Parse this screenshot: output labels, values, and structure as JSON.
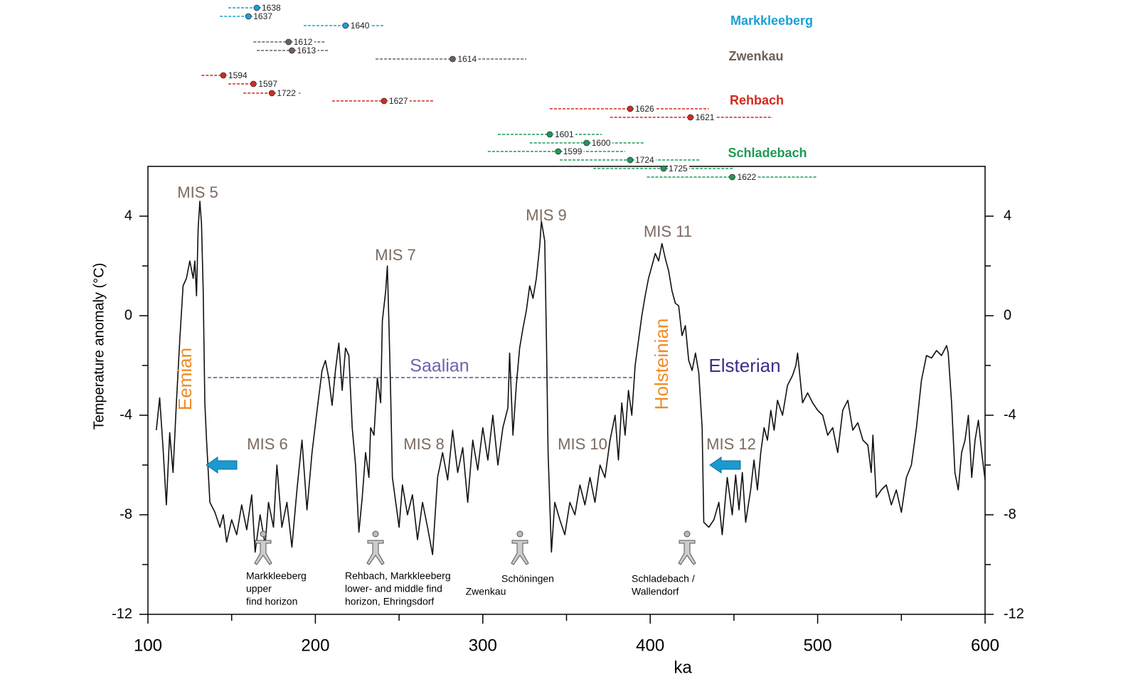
{
  "chart_data": {
    "type": "line",
    "xlabel": "ka",
    "ylabel": "Temperature anomaly (°C)",
    "color": "#111111",
    "xlim": [
      100,
      600
    ],
    "ylim": [
      -12,
      6
    ],
    "xticks": [
      100,
      200,
      300,
      400,
      500,
      600
    ],
    "xminor": [
      150,
      250,
      350,
      450,
      550
    ],
    "yticks": [
      4,
      0,
      -4,
      -8,
      -12
    ],
    "yminor": [
      2,
      -2,
      -6,
      -10
    ],
    "x": [
      105,
      107,
      109,
      111,
      113,
      115,
      117,
      119,
      121,
      123,
      125,
      127,
      128,
      129,
      130,
      131,
      132,
      133,
      134,
      135,
      137,
      140,
      143,
      145,
      147,
      150,
      153,
      156,
      159,
      162,
      164,
      167,
      170,
      172,
      175,
      177,
      180,
      183,
      186,
      189,
      192,
      195,
      198,
      201,
      204,
      206,
      208,
      210,
      212,
      214,
      216,
      218,
      220,
      222,
      224,
      226,
      228,
      230,
      232,
      233,
      235,
      237,
      239,
      240,
      242,
      243,
      244,
      245,
      246,
      248,
      250,
      252,
      255,
      258,
      261,
      264,
      267,
      270,
      273,
      276,
      279,
      282,
      285,
      288,
      291,
      294,
      297,
      300,
      303,
      306,
      309,
      312,
      315,
      316,
      318,
      320,
      322,
      324,
      326,
      328,
      330,
      332,
      334,
      335,
      337,
      338,
      339,
      341,
      343,
      346,
      349,
      352,
      355,
      358,
      361,
      364,
      367,
      370,
      373,
      376,
      379,
      381,
      383,
      385,
      387,
      389,
      391,
      393,
      395,
      397,
      399,
      401,
      403,
      405,
      407,
      409,
      411,
      413,
      415,
      417,
      419,
      421,
      423,
      425,
      427,
      429,
      431,
      432,
      435,
      438,
      441,
      443,
      446,
      449,
      451,
      453,
      455,
      457,
      460,
      462,
      464,
      466,
      468,
      470,
      472,
      474,
      476,
      479,
      482,
      485,
      487,
      488,
      491,
      494,
      497,
      500,
      503,
      506,
      509,
      512,
      515,
      518,
      521,
      524,
      527,
      530,
      532,
      533,
      535,
      538,
      541,
      544,
      547,
      550,
      553,
      556,
      559,
      562,
      565,
      568,
      571,
      574,
      577,
      578,
      580,
      582,
      584,
      586,
      588,
      590,
      592,
      594,
      596,
      598,
      600
    ],
    "values": [
      -4.6,
      -3.3,
      -5.3,
      -7.6,
      -4.7,
      -6.3,
      -3.5,
      -1.0,
      1.2,
      1.5,
      2.2,
      1.5,
      2.2,
      0.8,
      3.5,
      4.6,
      3.7,
      1.0,
      -3.5,
      -5.0,
      -7.5,
      -7.9,
      -8.5,
      -8.0,
      -9.1,
      -8.2,
      -8.8,
      -7.6,
      -8.6,
      -7.2,
      -9.5,
      -8.0,
      -9.2,
      -7.5,
      -8.5,
      -6.0,
      -8.5,
      -7.5,
      -9.3,
      -7.0,
      -5.0,
      -7.8,
      -5.5,
      -3.8,
      -2.2,
      -1.8,
      -2.5,
      -3.6,
      -2.2,
      -1.1,
      -3.0,
      -1.3,
      -1.6,
      -4.5,
      -6.0,
      -8.7,
      -7.3,
      -5.5,
      -6.5,
      -4.5,
      -4.8,
      -2.5,
      -3.5,
      -0.2,
      1.0,
      2.0,
      -0.5,
      -3.2,
      -6.5,
      -7.5,
      -8.5,
      -6.8,
      -8.0,
      -7.2,
      -9.0,
      -7.5,
      -8.5,
      -9.6,
      -6.5,
      -5.5,
      -6.6,
      -4.6,
      -6.3,
      -5.3,
      -7.5,
      -5.0,
      -6.2,
      -4.5,
      -5.8,
      -4.0,
      -6.0,
      -4.5,
      -3.7,
      -1.5,
      -4.8,
      -2.8,
      -1.3,
      -0.5,
      0.2,
      1.2,
      0.7,
      1.5,
      2.8,
      3.8,
      3.0,
      -1.0,
      -5.5,
      -9.5,
      -7.5,
      -8.2,
      -8.8,
      -7.5,
      -8.0,
      -6.8,
      -7.6,
      -6.5,
      -7.5,
      -6.0,
      -6.5,
      -5.0,
      -4.0,
      -5.8,
      -3.5,
      -4.8,
      -3.0,
      -4.0,
      -2.0,
      -1.0,
      0.0,
      0.8,
      1.5,
      2.0,
      2.5,
      2.2,
      2.9,
      2.3,
      1.8,
      1.0,
      0.5,
      0.4,
      -0.8,
      -0.4,
      -1.8,
      -2.2,
      -1.5,
      -2.3,
      -4.5,
      -8.3,
      -8.5,
      -8.2,
      -7.5,
      -8.8,
      -6.5,
      -8.0,
      -6.4,
      -7.8,
      -6.3,
      -8.3,
      -7.0,
      -5.8,
      -7.0,
      -5.5,
      -4.5,
      -5.0,
      -3.8,
      -4.6,
      -3.4,
      -4.0,
      -2.8,
      -2.4,
      -2.0,
      -1.5,
      -3.5,
      -3.1,
      -3.5,
      -3.8,
      -4.0,
      -4.8,
      -4.5,
      -5.5,
      -3.8,
      -3.4,
      -4.6,
      -4.3,
      -5.0,
      -5.2,
      -6.3,
      -4.8,
      -7.3,
      -7.0,
      -6.8,
      -7.6,
      -7.0,
      -7.9,
      -6.5,
      -6.0,
      -4.5,
      -2.6,
      -1.6,
      -1.7,
      -1.4,
      -1.6,
      -1.2,
      -1.5,
      -3.5,
      -6.3,
      -7.0,
      -5.5,
      -5.0,
      -4.0,
      -6.5,
      -5.0,
      -4.2,
      -5.5,
      -6.6
    ],
    "dating": [
      {
        "site": "Markkleeberg",
        "color": "#1aa0d6",
        "samples": [
          {
            "label": "1638",
            "value": 165,
            "min": 148,
            "max": 170
          },
          {
            "label": "1637",
            "value": 160,
            "min": 143,
            "max": 176
          },
          {
            "label": "1640",
            "value": 218,
            "min": 193,
            "max": 241
          }
        ]
      },
      {
        "site": "Zwenkau",
        "color": "#6e6058",
        "samples": [
          {
            "label": "1612",
            "value": 184,
            "min": 163,
            "max": 206
          },
          {
            "label": "1613",
            "value": 186,
            "min": 165,
            "max": 208
          },
          {
            "label": "1614",
            "value": 282,
            "min": 236,
            "max": 326
          }
        ]
      },
      {
        "site": "Rehbach",
        "color": "#d42a1d",
        "samples": [
          {
            "label": "1594",
            "value": 145,
            "min": 132,
            "max": 160
          },
          {
            "label": "1597",
            "value": 163,
            "min": 148,
            "max": 174
          },
          {
            "label": "1722",
            "value": 174,
            "min": 157,
            "max": 191
          },
          {
            "label": "1627",
            "value": 241,
            "min": 210,
            "max": 271
          },
          {
            "label": "1626",
            "value": 388,
            "min": 340,
            "max": 435
          },
          {
            "label": "1621",
            "value": 424,
            "min": 376,
            "max": 473
          }
        ]
      },
      {
        "site": "Schladebach",
        "color": "#1d9a55",
        "samples": [
          {
            "label": "1601",
            "value": 340,
            "min": 309,
            "max": 371
          },
          {
            "label": "1600",
            "value": 362,
            "min": 328,
            "max": 396
          },
          {
            "label": "1599",
            "value": 345,
            "min": 303,
            "max": 385
          },
          {
            "label": "1724",
            "value": 388,
            "min": 346,
            "max": 430
          },
          {
            "label": "1725",
            "value": 408,
            "min": 366,
            "max": 450
          },
          {
            "label": "1622",
            "value": 449,
            "min": 398,
            "max": 500
          }
        ]
      }
    ],
    "annotations": {
      "mis": [
        "MIS 5",
        "MIS 7",
        "MIS 9",
        "MIS 11",
        "MIS 6",
        "MIS 8",
        "MIS 10",
        "MIS 12"
      ],
      "stages": [
        "Eemian",
        "Saalian",
        "Holsteinian",
        "Elsterian"
      ],
      "sites": [
        [
          "Markkleeberg",
          "upper",
          "find horizon"
        ],
        [
          "Rehbach, Markkleeberg",
          "lower- and middle find",
          "horizon, Ehringsdorf"
        ],
        [
          "Schöningen"
        ],
        [
          "Zwenkau"
        ],
        [
          "Schladebach /",
          "Wallendorf"
        ]
      ]
    }
  }
}
